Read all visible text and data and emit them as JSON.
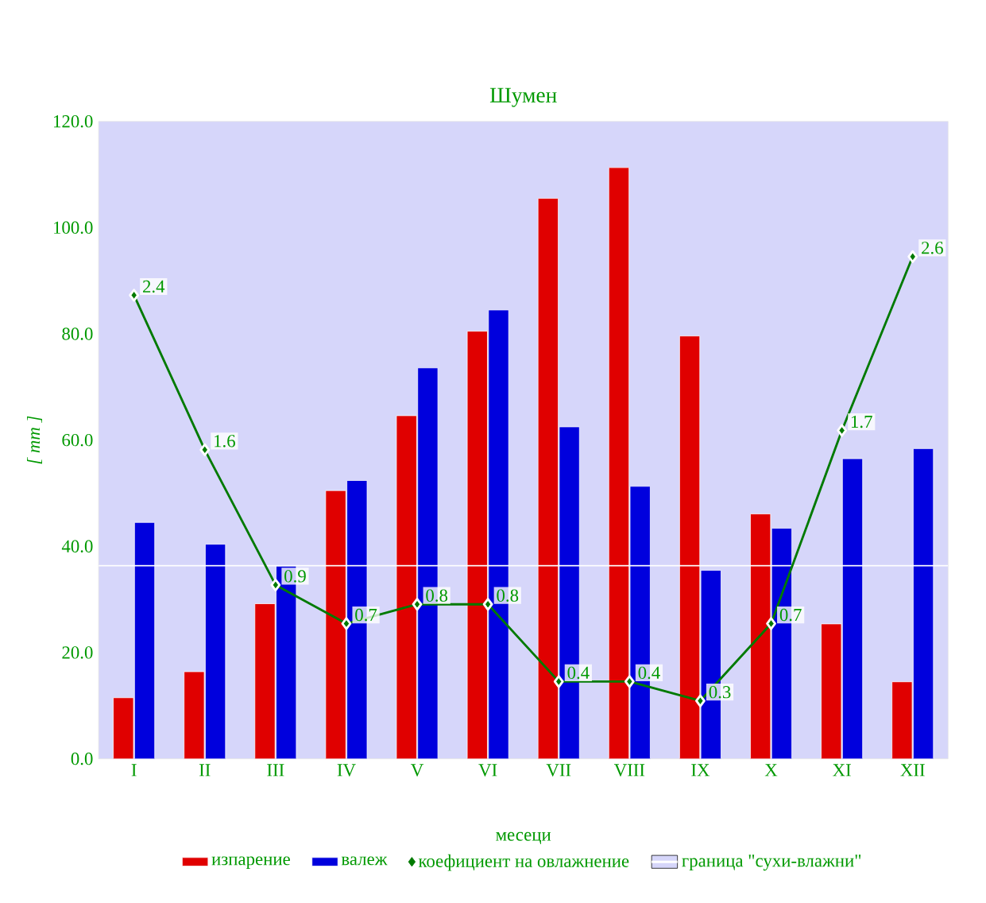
{
  "chart_data": {
    "type": "bar",
    "title": "Шумен",
    "ylabel": "[ mm ]",
    "xlabel": "месеци",
    "categories": [
      "I",
      "II",
      "III",
      "IV",
      "V",
      "VI",
      "VII",
      "VIII",
      "IX",
      "X",
      "XI",
      "XII"
    ],
    "series": [
      {
        "name": "изпарение",
        "color": "#e00000",
        "values": [
          11.5,
          16.4,
          29.2,
          50.5,
          64.6,
          80.5,
          105.5,
          111.3,
          79.6,
          46.1,
          25.4,
          14.5
        ]
      },
      {
        "name": "валеж",
        "color": "#0000dd",
        "values": [
          44.5,
          40.4,
          36.3,
          52.4,
          73.6,
          84.5,
          62.5,
          51.3,
          35.5,
          43.4,
          56.5,
          58.4
        ]
      },
      {
        "name": "коефициент на овлажнение",
        "type": "line",
        "axis": "y2",
        "color": "#007a00",
        "marker": "diamond",
        "values": [
          2.4,
          1.6,
          0.9,
          0.7,
          0.8,
          0.8,
          0.4,
          0.4,
          0.3,
          0.7,
          1.7,
          2.6
        ],
        "value_labels": [
          "2.4",
          "1.6",
          "0.9",
          "0.7",
          "0.8",
          "0.8",
          "0.4",
          "0.4",
          "0.3",
          "0.7",
          "1.7",
          "2.6"
        ]
      }
    ],
    "ylim": [
      0,
      120
    ],
    "yticks": [
      {
        "value": 0,
        "label": "0.0"
      },
      {
        "value": 20,
        "label": "20.0"
      },
      {
        "value": 40,
        "label": "40.0"
      },
      {
        "value": 60,
        "label": "60.0"
      },
      {
        "value": 80,
        "label": "80.0"
      },
      {
        "value": 100,
        "label": "100.0"
      },
      {
        "value": 120,
        "label": "120.0"
      }
    ],
    "y2lim": [
      0,
      3.3
    ],
    "ref_lines": [
      {
        "axis": "y2",
        "value": 1.0,
        "label": "граница \"сухи-влажни\"",
        "color": "#ffffff"
      }
    ],
    "legend": "bottom"
  }
}
